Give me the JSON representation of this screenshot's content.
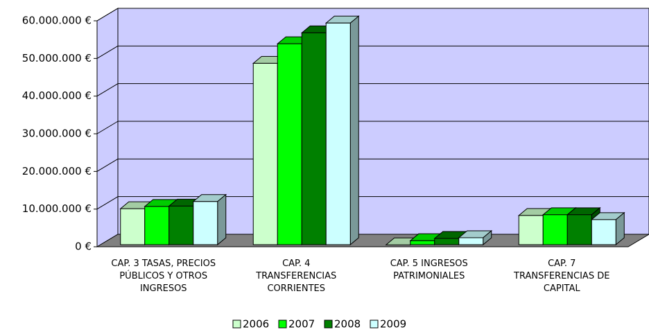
{
  "chart_data": {
    "type": "bar3d",
    "categories": [
      "CAP. 3  TASAS, PRECIOS\nPÚBLICOS Y OTROS\nINGRESOS",
      "CAP. 4\nTRANSFERENCIAS\nCORRIENTES",
      "CAP. 5  INGRESOS\nPATRIMONIALES",
      "CAP. 7\nTRANSFERENCIAS DE\nCAPITAL"
    ],
    "series": [
      {
        "name": "2006",
        "color": "#ccffcc",
        "values": [
          10100000,
          48700000,
          500000,
          8300000
        ]
      },
      {
        "name": "2007",
        "color": "#00ff00",
        "values": [
          10700000,
          53900000,
          1600000,
          8500000
        ]
      },
      {
        "name": "2008",
        "color": "#008000",
        "values": [
          10800000,
          56800000,
          2200000,
          8500000
        ]
      },
      {
        "name": "2009",
        "color": "#ccffff",
        "values": [
          12000000,
          59400000,
          2400000,
          7200000
        ]
      }
    ],
    "ylim": [
      0,
      60000000
    ],
    "yticks": [
      {
        "value": 0,
        "label": "0 €"
      },
      {
        "value": 10000000,
        "label": "10.000.000 €"
      },
      {
        "value": 20000000,
        "label": "20.000.000 €"
      },
      {
        "value": 30000000,
        "label": "30.000.000 €"
      },
      {
        "value": 40000000,
        "label": "40.000.000 €"
      },
      {
        "value": 50000000,
        "label": "50.000.000 €"
      },
      {
        "value": 60000000,
        "label": "60.000.000 €"
      }
    ],
    "grid": true,
    "legend": "bottom"
  }
}
